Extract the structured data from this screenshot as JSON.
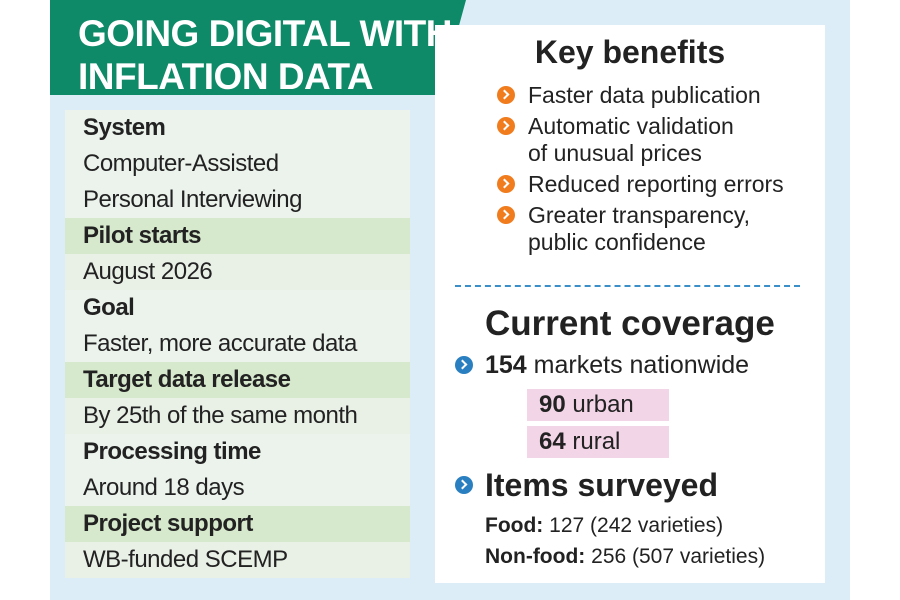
{
  "header": {
    "title_lines": [
      "GOING DIGITAL WITH",
      "INFLATION DATA"
    ]
  },
  "details": [
    {
      "label": "System",
      "value_lines": [
        "Computer-Assisted",
        "Personal Interviewing"
      ]
    },
    {
      "label": "Pilot starts",
      "value_lines": [
        "August 2026"
      ]
    },
    {
      "label": "Goal",
      "value_lines": [
        "Faster, more accurate data"
      ]
    },
    {
      "label": "Target data release",
      "value_lines": [
        "By 25th of the same month"
      ]
    },
    {
      "label": "Processing time",
      "value_lines": [
        "Around 18 days"
      ]
    },
    {
      "label": "Project support",
      "value_lines": [
        "WB-funded SCEMP"
      ]
    }
  ],
  "benefits": {
    "title": "Key benefits",
    "items": [
      [
        "Faster data publication"
      ],
      [
        "Automatic validation",
        "of unusual prices"
      ],
      [
        "Reduced reporting errors"
      ],
      [
        "Greater transparency,",
        "public confidence"
      ]
    ]
  },
  "coverage": {
    "title": "Current coverage",
    "markets": {
      "number": "154",
      "text": "markets nationwide"
    },
    "breakdown": [
      {
        "number": "90",
        "text": "urban"
      },
      {
        "number": "64",
        "text": "rural"
      }
    ],
    "items": {
      "title": "Items surveyed",
      "rows": [
        {
          "label": "Food:",
          "text": "127 (242 varieties)"
        },
        {
          "label": "Non-food:",
          "text": "256 (507 varieties)"
        }
      ]
    }
  }
}
